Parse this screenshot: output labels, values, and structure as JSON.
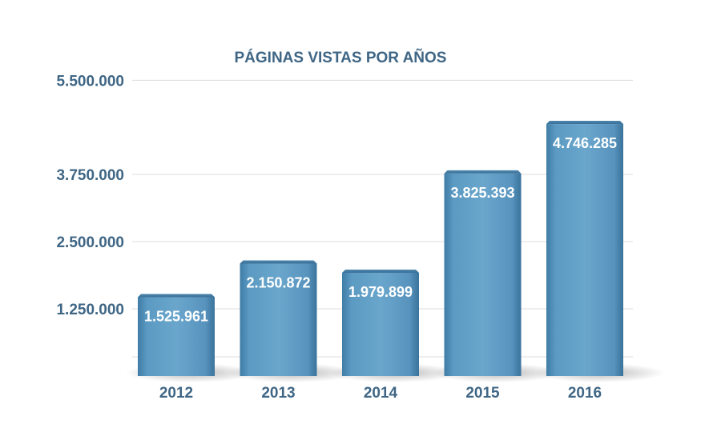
{
  "chart_data": {
    "type": "bar",
    "title": "PÁGINAS VISTAS POR AÑOS",
    "categories": [
      "2012",
      "2013",
      "2014",
      "2015",
      "2016"
    ],
    "values": [
      1525961,
      2150872,
      1979899,
      3825393,
      4746285
    ],
    "data_labels": [
      "1.525.961",
      "2.150.872",
      "1.979.899",
      "3.825.393",
      "4.746.285"
    ],
    "y_ticks": [
      {
        "value": 1250000,
        "label": "1.250.000"
      },
      {
        "value": 2500000,
        "label": "2.500.000"
      },
      {
        "value": 3750000,
        "label": "3.750.000"
      },
      {
        "value": 5500000,
        "label": "5.500.000"
      }
    ],
    "xlabel": "",
    "ylabel": "",
    "grid": true,
    "legend": "none",
    "colors": {
      "bar": "#5b9ac2",
      "bar_dark": "#3f7ca6",
      "text": "#3f6685",
      "data_label": "#ffffff"
    }
  }
}
